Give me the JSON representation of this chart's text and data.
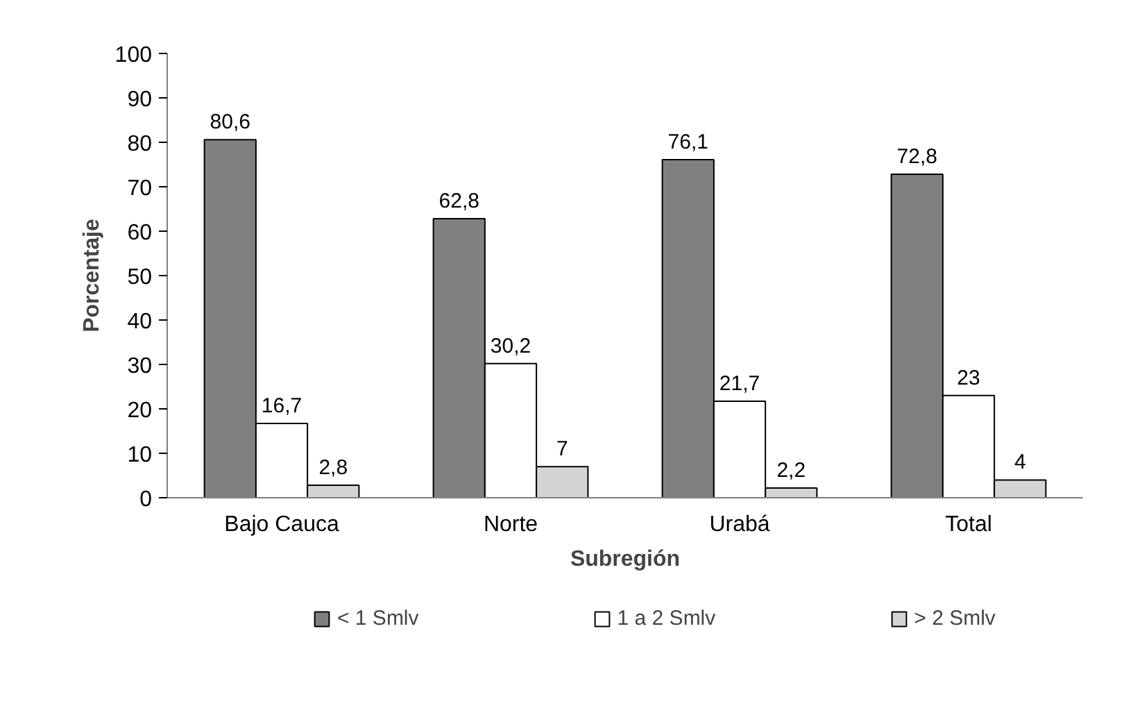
{
  "chart_data": {
    "type": "bar",
    "categories": [
      "Bajo Cauca",
      "Norte",
      "Urabá",
      "Total"
    ],
    "series": [
      {
        "name": "< 1 Smlv",
        "color": "#808080",
        "values": [
          80.6,
          62.8,
          76.1,
          72.8
        ],
        "value_labels": [
          "80,6",
          "62,8",
          "76,1",
          "72,8"
        ]
      },
      {
        "name": "1 a 2 Smlv",
        "color": "#ffffff",
        "values": [
          16.7,
          30.2,
          21.7,
          23
        ],
        "value_labels": [
          "16,7",
          "30,2",
          "21,7",
          "23"
        ]
      },
      {
        "name": "> 2 Smlv",
        "color": "#d4d4d4",
        "values": [
          2.8,
          7,
          2.2,
          4
        ],
        "value_labels": [
          "2,8",
          "7",
          "2,2",
          "4"
        ]
      }
    ],
    "xlabel": "Subregión",
    "ylabel": "Porcentaje",
    "ylim": [
      0,
      100
    ],
    "yticks": [
      0,
      10,
      20,
      30,
      40,
      50,
      60,
      70,
      80,
      90,
      100
    ],
    "legend": "bottom"
  }
}
